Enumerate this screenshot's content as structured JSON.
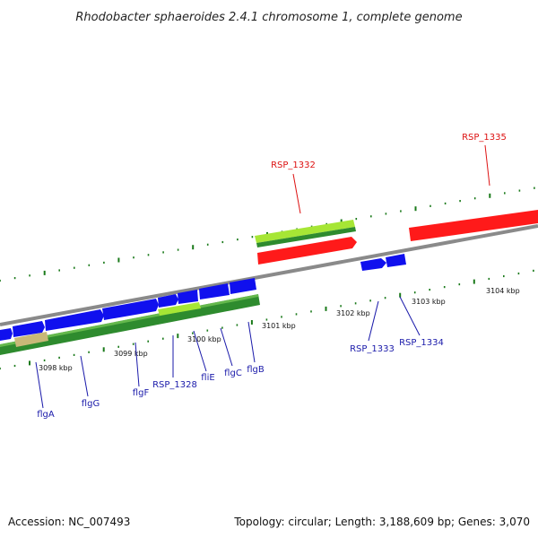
{
  "title": "Rhodobacter sphaeroides 2.4.1 chromosome 1, complete genome",
  "accession": "Accession: NC_007493",
  "summary": "Topology: circular; Length: 3,188,609 bp; Genes: 3,070",
  "colors": {
    "backbone": "#8a8a8a",
    "tick": "#1a7a1a",
    "gene_green": "#2e8b2e",
    "gene_light": "#a6e635",
    "gene_red": "#ff1a1a",
    "gene_blue": "#1010ee",
    "gene_tan": "#c8b878",
    "label_red": "#dd1111",
    "label_blue": "#1a1aaa"
  },
  "kbp_labels": [
    "3098 kbp",
    "3099 kbp",
    "3100 kbp",
    "3101 kbp",
    "3102 kbp",
    "3103 kbp",
    "3104 kbp"
  ],
  "genes": [
    "flgA",
    "flgG",
    "flgF",
    "RSP_1328",
    "fliE",
    "flgC",
    "flgB",
    "RSP_1332",
    "RSP_1333",
    "RSP_1334",
    "RSP_1335"
  ]
}
